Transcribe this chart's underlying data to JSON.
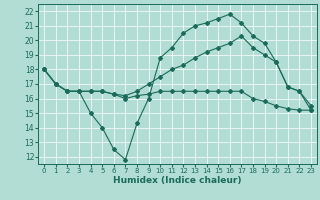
{
  "title": "",
  "xlabel": "Humidex (Indice chaleur)",
  "ylabel": "",
  "xlim": [
    -0.5,
    23.5
  ],
  "ylim": [
    11.5,
    22.5
  ],
  "yticks": [
    12,
    13,
    14,
    15,
    16,
    17,
    18,
    19,
    20,
    21,
    22
  ],
  "xticks": [
    0,
    1,
    2,
    3,
    4,
    5,
    6,
    7,
    8,
    9,
    10,
    11,
    12,
    13,
    14,
    15,
    16,
    17,
    18,
    19,
    20,
    21,
    22,
    23
  ],
  "bg_color": "#b2ddd4",
  "grid_color": "#ffffff",
  "line_color": "#1a6b5a",
  "lines": [
    {
      "x": [
        0,
        1,
        2,
        3,
        4,
        5,
        6,
        7,
        8,
        9,
        10,
        11,
        12,
        13,
        14,
        15,
        16,
        17,
        18,
        19,
        20,
        21,
        22,
        23
      ],
      "y": [
        18,
        17,
        16.5,
        16.5,
        15,
        14,
        12.5,
        11.8,
        14.3,
        16.0,
        18.8,
        19.5,
        20.5,
        21.0,
        21.2,
        21.5,
        21.8,
        21.2,
        20.3,
        19.8,
        18.5,
        16.8,
        16.5,
        15.2
      ]
    },
    {
      "x": [
        0,
        1,
        2,
        3,
        4,
        5,
        6,
        7,
        8,
        9,
        10,
        11,
        12,
        13,
        14,
        15,
        16,
        17,
        18,
        19,
        20,
        21,
        22,
        23
      ],
      "y": [
        18,
        17,
        16.5,
        16.5,
        16.5,
        16.5,
        16.3,
        16.2,
        16.5,
        17.0,
        17.5,
        18.0,
        18.3,
        18.8,
        19.2,
        19.5,
        19.8,
        20.3,
        19.5,
        19.0,
        18.5,
        16.8,
        16.5,
        15.5
      ]
    },
    {
      "x": [
        0,
        1,
        2,
        3,
        4,
        5,
        6,
        7,
        8,
        9,
        10,
        11,
        12,
        13,
        14,
        15,
        16,
        17,
        18,
        19,
        20,
        21,
        22,
        23
      ],
      "y": [
        18,
        17,
        16.5,
        16.5,
        16.5,
        16.5,
        16.3,
        16.0,
        16.2,
        16.3,
        16.5,
        16.5,
        16.5,
        16.5,
        16.5,
        16.5,
        16.5,
        16.5,
        16.0,
        15.8,
        15.5,
        15.3,
        15.2,
        15.2
      ]
    }
  ]
}
